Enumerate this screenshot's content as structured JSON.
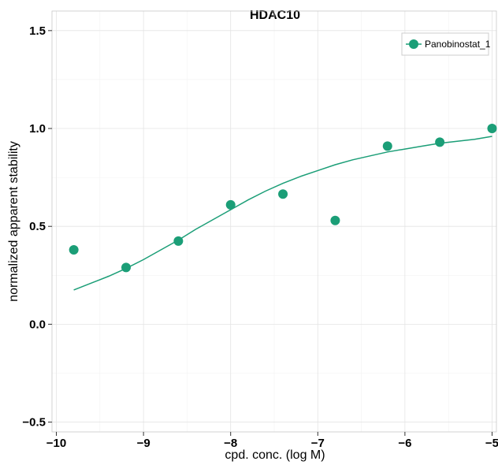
{
  "chart_data": {
    "type": "scatter",
    "title": "HDAC10",
    "xlabel": "cpd. conc. (log M)",
    "ylabel": "normalized apparent stability",
    "xlim": [
      -10.05,
      -4.95
    ],
    "ylim": [
      -0.55,
      1.6
    ],
    "x_ticks": [
      -10,
      -9,
      -8,
      -7,
      -6,
      -5
    ],
    "x_tick_labels": [
      "−10",
      "−9",
      "−8",
      "−7",
      "−6",
      "−5"
    ],
    "y_ticks": [
      -0.5,
      0.0,
      0.5,
      1.0,
      1.5
    ],
    "y_tick_labels": [
      "−0.5",
      "0.0",
      "0.5",
      "1.0",
      "1.5"
    ],
    "grid": true,
    "legend_position": "top-right",
    "series": [
      {
        "name": "Panobinostat_1",
        "color": "#1b9e77",
        "points": [
          {
            "x": -9.8,
            "y": 0.38
          },
          {
            "x": -9.2,
            "y": 0.29
          },
          {
            "x": -8.6,
            "y": 0.425
          },
          {
            "x": -8.0,
            "y": 0.61
          },
          {
            "x": -7.4,
            "y": 0.665
          },
          {
            "x": -6.8,
            "y": 0.53
          },
          {
            "x": -6.2,
            "y": 0.91
          },
          {
            "x": -5.6,
            "y": 0.93
          },
          {
            "x": -5.0,
            "y": 1.0
          }
        ],
        "fit": {
          "x": [
            -9.8,
            -9.6,
            -9.4,
            -9.2,
            -9.0,
            -8.8,
            -8.6,
            -8.4,
            -8.2,
            -8.0,
            -7.8,
            -7.6,
            -7.4,
            -7.2,
            -7.0,
            -6.8,
            -6.6,
            -6.4,
            -6.2,
            -6.0,
            -5.8,
            -5.6,
            -5.4,
            -5.2,
            -5.0
          ],
          "y": [
            0.175,
            0.21,
            0.245,
            0.285,
            0.33,
            0.38,
            0.43,
            0.485,
            0.535,
            0.585,
            0.635,
            0.68,
            0.72,
            0.755,
            0.785,
            0.815,
            0.84,
            0.86,
            0.88,
            0.895,
            0.91,
            0.925,
            0.935,
            0.945,
            0.96
          ]
        }
      }
    ]
  }
}
